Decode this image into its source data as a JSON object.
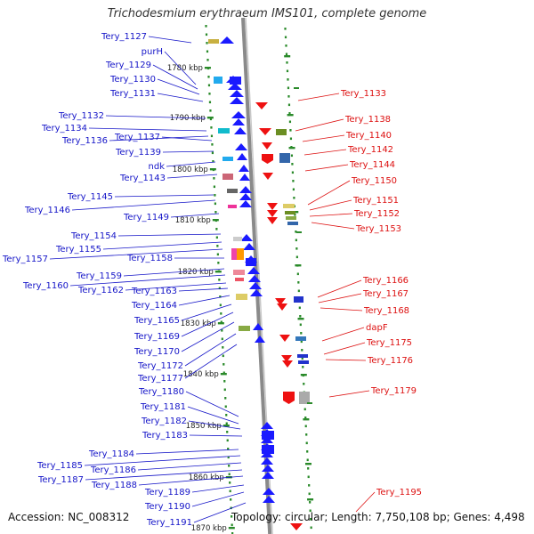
{
  "title": "Trichodesmium erythraeum IMS101, complete genome",
  "footer": {
    "accession": "Accession: NC_008312",
    "topology": "Topology: circular; Length: 7,750,108 bp; Genes: 4,498"
  },
  "colors": {
    "left_label": "#1515c8",
    "right_label": "#dd1111",
    "left_arrow": "#1a1aff",
    "right_arrow": "#ee1111",
    "tick": "#2a8a2a",
    "backbone": "#8a8a8a",
    "scale_text": "#222222"
  },
  "scale_labels": [
    "1780 kbp",
    "1790 kbp",
    "1800 kbp",
    "1810 kbp",
    "1820 kbp",
    "1830 kbp",
    "1840 kbp",
    "1850 kbp",
    "1860 kbp",
    "1870 kbp"
  ],
  "left_genes": [
    "Tery_1127",
    "purH",
    "Tery_1129",
    "Tery_1130",
    "Tery_1131",
    "Tery_1132",
    "Tery_1134",
    "Tery_1136",
    "Tery_1137",
    "Tery_1139",
    "ndk",
    "Tery_1143",
    "Tery_1145",
    "Tery_1146",
    "Tery_1149",
    "Tery_1154",
    "Tery_1155",
    "Tery_1157",
    "Tery_1158",
    "Tery_1159",
    "Tery_1160",
    "Tery_1162",
    "Tery_1163",
    "Tery_1164",
    "Tery_1165",
    "Tery_1169",
    "Tery_1170",
    "Tery_1172",
    "Tery_1177",
    "Tery_1180",
    "Tery_1181",
    "Tery_1182",
    "Tery_1183",
    "Tery_1184",
    "Tery_1185",
    "Tery_1186",
    "Tery_1187",
    "Tery_1188",
    "Tery_1189",
    "Tery_1190",
    "Tery_1191"
  ],
  "right_genes": [
    "Tery_1133",
    "Tery_1138",
    "Tery_1140",
    "Tery_1142",
    "Tery_1144",
    "Tery_1150",
    "Tery_1151",
    "Tery_1152",
    "Tery_1153",
    "Tery_1166",
    "Tery_1167",
    "Tery_1168",
    "dapF",
    "Tery_1175",
    "Tery_1176",
    "Tery_1179",
    "Tery_1195"
  ]
}
